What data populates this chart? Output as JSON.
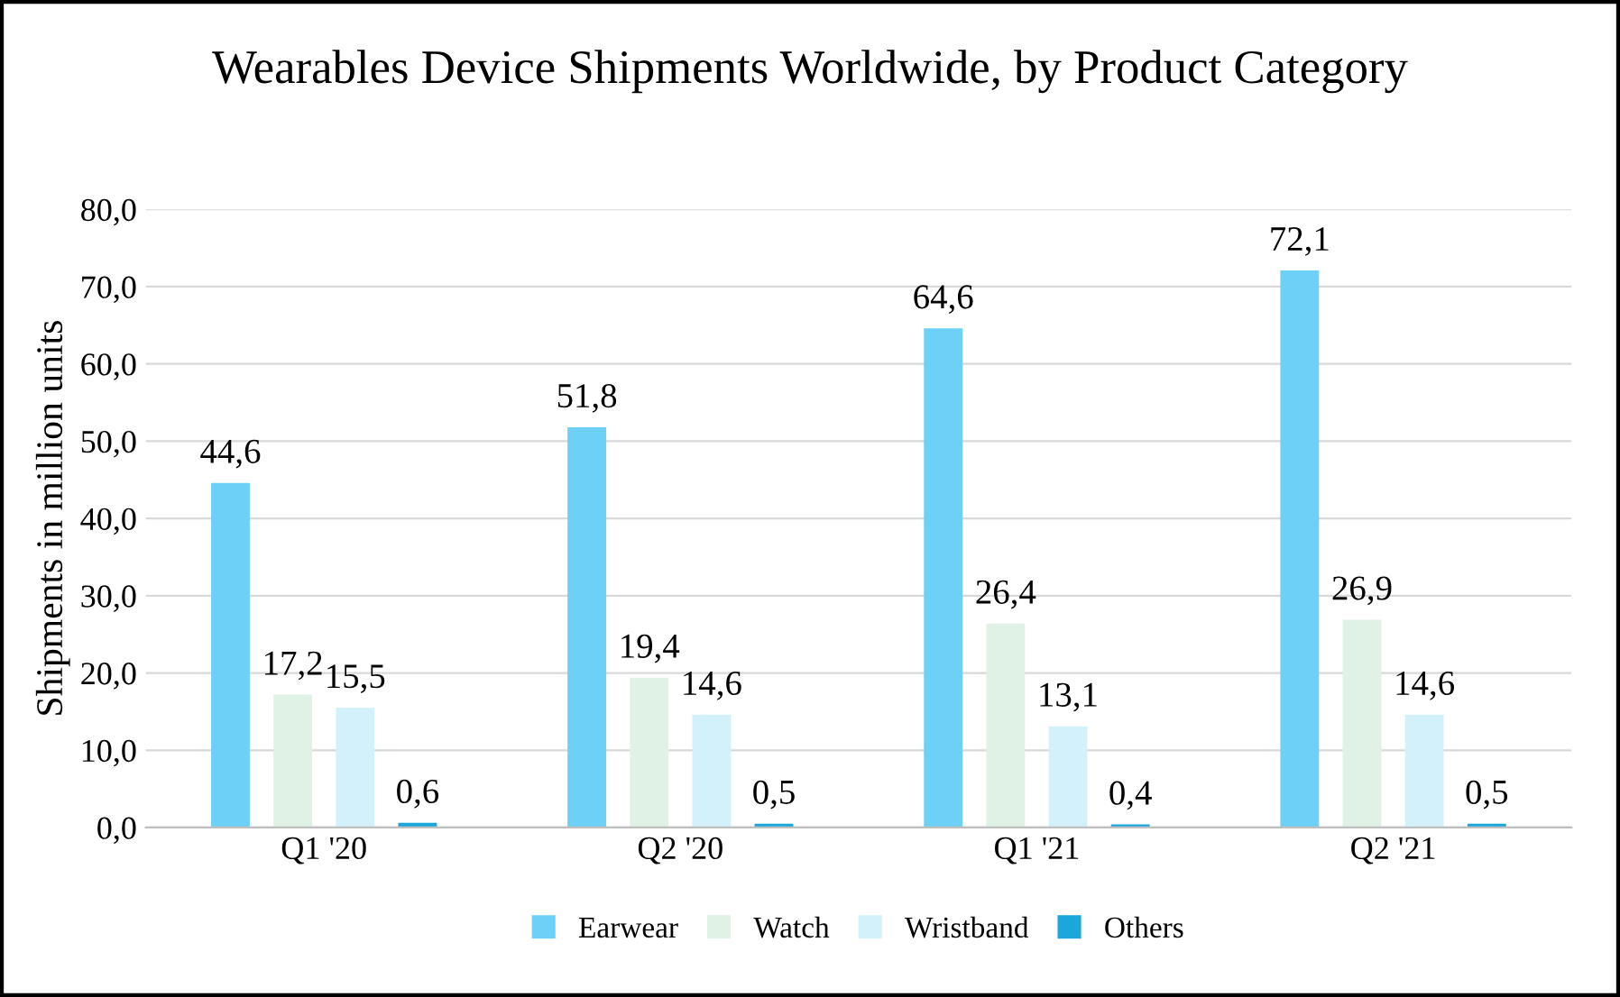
{
  "chart_data": {
    "type": "bar",
    "title": "Wearables Device Shipments Worldwide, by Product Category",
    "ylabel": "Shipments in million units",
    "categories": [
      "Q1 '20",
      "Q2 '20",
      "Q1 '21",
      "Q2 '21"
    ],
    "series": [
      {
        "name": "Earwear",
        "color": "#6dd0f7",
        "values": [
          44.6,
          51.8,
          64.6,
          72.1
        ],
        "value_labels": [
          "44,6",
          "51,8",
          "64,6",
          "72,1"
        ]
      },
      {
        "name": "Watch",
        "color": "#e0f1e6",
        "values": [
          17.2,
          19.4,
          26.4,
          26.9
        ],
        "value_labels": [
          "17,2",
          "19,4",
          "26,4",
          "26,9"
        ]
      },
      {
        "name": "Wristband",
        "color": "#d3f1fb",
        "values": [
          15.5,
          14.6,
          13.1,
          14.6
        ],
        "value_labels": [
          "15,5",
          "14,6",
          "13,1",
          "14,6"
        ]
      },
      {
        "name": "Others",
        "color": "#1ba6dc",
        "values": [
          0.6,
          0.5,
          0.4,
          0.5
        ],
        "value_labels": [
          "0,6",
          "0,5",
          "0,4",
          "0,5"
        ]
      }
    ],
    "ylim": [
      0,
      80
    ],
    "yticks": [
      {
        "value": 0,
        "label": "0,0"
      },
      {
        "value": 10,
        "label": "10,0"
      },
      {
        "value": 20,
        "label": "20,0"
      },
      {
        "value": 30,
        "label": "30,0"
      },
      {
        "value": 40,
        "label": "40,0"
      },
      {
        "value": 50,
        "label": "50,0"
      },
      {
        "value": 60,
        "label": "60,0"
      },
      {
        "value": 70,
        "label": "70,0"
      },
      {
        "value": 80,
        "label": "80,0"
      }
    ],
    "grid": "y",
    "legend": "bottom"
  }
}
